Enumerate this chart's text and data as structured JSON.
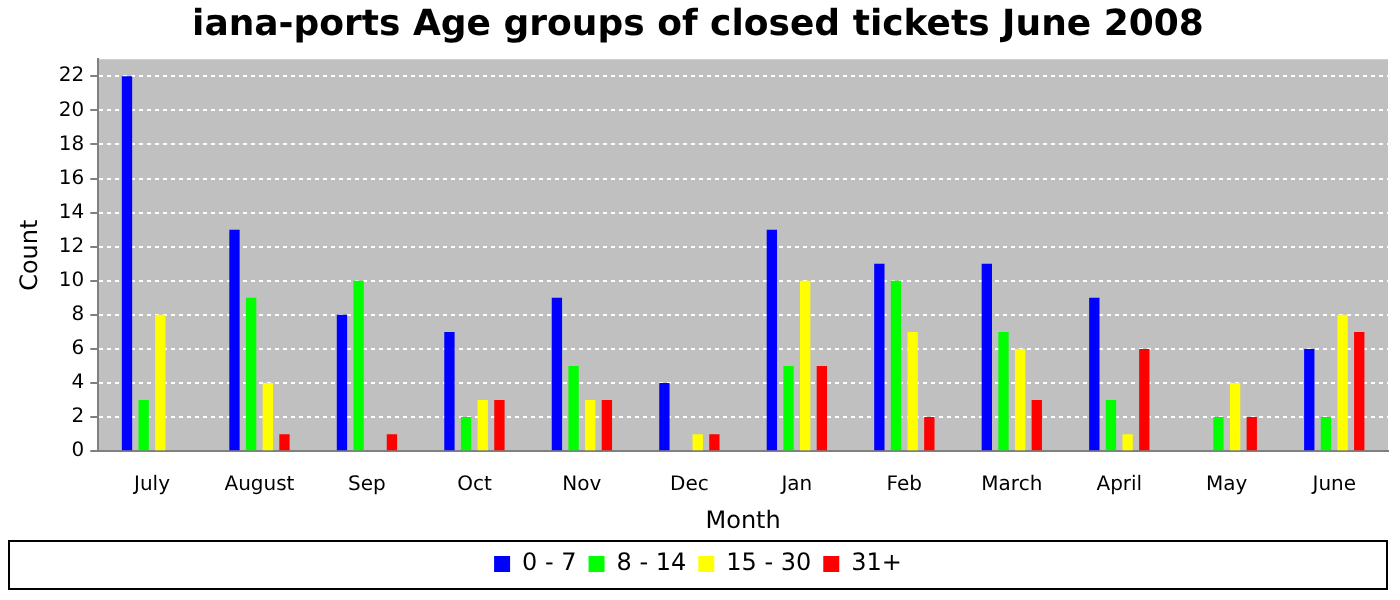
{
  "chart_data": {
    "type": "bar",
    "title": "iana-ports Age groups of closed tickets June 2008",
    "xlabel": "Month",
    "ylabel": "Count",
    "categories": [
      "July",
      "August",
      "Sep",
      "Oct",
      "Nov",
      "Dec",
      "Jan",
      "Feb",
      "March",
      "April",
      "May",
      "June"
    ],
    "series": [
      {
        "name": "0 - 7",
        "color": "#0000ff",
        "values": [
          22,
          13,
          8,
          7,
          9,
          4,
          13,
          11,
          11,
          9,
          0,
          6
        ]
      },
      {
        "name": "8 - 14",
        "color": "#00ff00",
        "values": [
          3,
          9,
          10,
          2,
          5,
          0,
          5,
          10,
          7,
          3,
          2,
          2
        ]
      },
      {
        "name": "15 - 30",
        "color": "#ffff00",
        "values": [
          8,
          4,
          0,
          3,
          3,
          1,
          10,
          7,
          6,
          1,
          4,
          8
        ]
      },
      {
        "name": "31+",
        "color": "#ff0000",
        "values": [
          0,
          1,
          1,
          3,
          3,
          1,
          5,
          2,
          3,
          6,
          2,
          7
        ]
      }
    ],
    "ylim": [
      0,
      23
    ],
    "yticks": [
      0,
      2,
      4,
      6,
      8,
      10,
      12,
      14,
      16,
      18,
      20,
      22
    ],
    "grid": "y",
    "legend": "bottom"
  }
}
